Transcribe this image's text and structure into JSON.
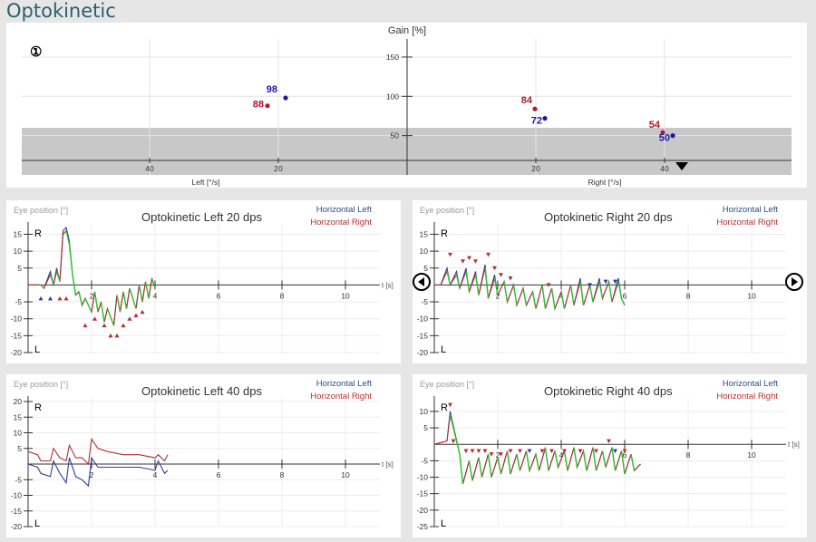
{
  "page_title": "Optokinetic",
  "gain_chart": {
    "ylabel": "Gain [%]",
    "y_ticks": [
      150,
      100,
      50
    ],
    "left_ticks": [
      40,
      20
    ],
    "right_ticks": [
      20,
      40
    ],
    "left_xlabel": "Left [°/s]",
    "right_xlabel": "Right [°/s]",
    "badge": "①",
    "shaded_below": 60,
    "points": [
      {
        "label": "98",
        "side": "left",
        "speed": 20,
        "gain": 98,
        "color": "#1a1aa0"
      },
      {
        "label": "88",
        "side": "left",
        "speed": 20,
        "gain": 88,
        "color": "#b01a2a"
      },
      {
        "label": "84",
        "side": "right",
        "speed": 20,
        "gain": 84,
        "color": "#b01a2a"
      },
      {
        "label": "72",
        "side": "right",
        "speed": 20,
        "gain": 72,
        "color": "#1a1aa0"
      },
      {
        "label": "54",
        "side": "right",
        "speed": 40,
        "gain": 54,
        "color": "#b01a2a"
      },
      {
        "label": "50",
        "side": "right",
        "speed": 40,
        "gain": 50,
        "color": "#1a1aa0"
      }
    ]
  },
  "legend": {
    "left": "Horizontal Left",
    "right": "Horizontal Right"
  },
  "eye_label": "Eye position [°]",
  "r_label": "R",
  "l_label": "L",
  "t_label": "t [s]",
  "colors": {
    "left": "#2e3f9a",
    "right": "#b03030",
    "green": "#22cc22",
    "shade": "#c8c8c8"
  },
  "chart_data": [
    {
      "type": "line",
      "title": "Optokinetic Left 20 dps",
      "xlabel": "t [s]",
      "ylabel": "Eye position [°]",
      "y_ticks": [
        15,
        10,
        5,
        -5,
        -10,
        -15,
        -20
      ],
      "x_ticks": [
        2,
        4,
        6,
        8,
        10
      ],
      "ylim": [
        -20,
        17
      ],
      "xlim": [
        0,
        11
      ],
      "series": [
        {
          "name": "Horizontal Left",
          "x": [
            0,
            0.4,
            0.5,
            0.7,
            0.8,
            0.9,
            1.0,
            1.1,
            1.2,
            1.3,
            1.4,
            1.5,
            1.6,
            1.7,
            1.8,
            2.0,
            2.1,
            2.2,
            2.3,
            2.4,
            2.5,
            2.7,
            2.8,
            2.9,
            3.0,
            3.1,
            3.2,
            3.4,
            3.5,
            3.6,
            3.7,
            3.8,
            3.9,
            4.0
          ],
          "y": [
            0,
            0,
            -1,
            4,
            0,
            5,
            1,
            16,
            17,
            13,
            3,
            -3,
            -2,
            -6,
            -4,
            -8,
            -2,
            -8,
            -5,
            -11,
            -7,
            -12,
            -3,
            -8,
            -2,
            -7,
            -1,
            -7,
            0,
            -5,
            1,
            -4,
            2,
            -1
          ]
        },
        {
          "name": "Horizontal Right",
          "x": [
            0,
            0.4,
            0.5,
            0.7,
            0.8,
            0.9,
            1.0,
            1.1,
            1.2,
            1.3,
            1.4,
            1.5,
            1.6,
            1.7,
            1.8,
            2.0,
            2.1,
            2.2,
            2.3,
            2.4,
            2.5,
            2.7,
            2.8,
            2.9,
            3.0,
            3.1,
            3.2,
            3.4,
            3.5,
            3.6,
            3.7,
            3.8,
            3.9,
            4.0
          ],
          "y": [
            0,
            0,
            -1,
            3,
            0,
            4,
            1,
            15,
            16,
            12,
            3,
            -3,
            -2,
            -6,
            -4,
            -8,
            -2,
            -8,
            -5,
            -11,
            -7,
            -12,
            -3,
            -8,
            -2,
            -7,
            -1,
            -7,
            0,
            -5,
            1,
            -4,
            2,
            -1
          ]
        }
      ],
      "markers": [
        {
          "x": 0.4,
          "y": -4,
          "dir": "up",
          "color": "#2e3f9a"
        },
        {
          "x": 0.7,
          "y": -4,
          "dir": "up",
          "color": "#2e3f9a"
        },
        {
          "x": 1.0,
          "y": -4,
          "dir": "up",
          "color": "#b03030"
        },
        {
          "x": 1.2,
          "y": -4,
          "dir": "up",
          "color": "#b03030"
        },
        {
          "x": 1.8,
          "y": -12,
          "dir": "up",
          "color": "#b03030"
        },
        {
          "x": 2.1,
          "y": -10,
          "dir": "up",
          "color": "#b03030"
        },
        {
          "x": 2.4,
          "y": -12,
          "dir": "up",
          "color": "#b03030"
        },
        {
          "x": 2.6,
          "y": -15,
          "dir": "up",
          "color": "#b03030"
        },
        {
          "x": 2.8,
          "y": -15,
          "dir": "up",
          "color": "#b03030"
        },
        {
          "x": 3.0,
          "y": -12,
          "dir": "up",
          "color": "#b03030"
        },
        {
          "x": 3.2,
          "y": -10,
          "dir": "up",
          "color": "#b03030"
        },
        {
          "x": 3.4,
          "y": -9,
          "dir": "up",
          "color": "#b03030"
        },
        {
          "x": 3.6,
          "y": -8,
          "dir": "up",
          "color": "#b03030"
        }
      ]
    },
    {
      "type": "line",
      "title": "Optokinetic Right 20 dps",
      "xlabel": "t [s]",
      "ylabel": "Eye position [°]",
      "y_ticks": [
        15,
        10,
        5,
        -5,
        -10,
        -15,
        -20
      ],
      "x_ticks": [
        2,
        4,
        6,
        8,
        10
      ],
      "ylim": [
        -20,
        17
      ],
      "xlim": [
        0,
        11
      ],
      "series": [
        {
          "name": "Horizontal Left",
          "x": [
            0,
            0.2,
            0.4,
            0.5,
            0.7,
            0.8,
            1.0,
            1.1,
            1.3,
            1.4,
            1.6,
            1.7,
            1.9,
            2.0,
            2.2,
            2.3,
            2.5,
            2.6,
            2.8,
            2.9,
            3.1,
            3.2,
            3.4,
            3.5,
            3.7,
            3.8,
            4.0,
            4.1,
            4.3,
            4.4,
            4.6,
            4.7,
            4.9,
            5.0,
            5.2,
            5.3,
            5.5,
            5.6,
            5.8,
            5.9,
            6.0
          ],
          "y": [
            0,
            0,
            5,
            0,
            4,
            -1,
            5,
            -2,
            4,
            -3,
            6,
            -4,
            3,
            -3,
            1,
            -5,
            0,
            -6,
            -1,
            -6,
            -2,
            -7,
            0,
            -7,
            -1,
            -7,
            -2,
            -7,
            0,
            -6,
            2,
            -6,
            0,
            -5,
            2,
            -4,
            1,
            -5,
            2,
            -4,
            -6
          ]
        },
        {
          "name": "Horizontal Right",
          "x": [
            0,
            0.2,
            0.4,
            0.5,
            0.7,
            0.8,
            1.0,
            1.1,
            1.3,
            1.4,
            1.6,
            1.7,
            1.9,
            2.0,
            2.2,
            2.3,
            2.5,
            2.6,
            2.8,
            2.9,
            3.1,
            3.2,
            3.4,
            3.5,
            3.7,
            3.8,
            4.0,
            4.1,
            4.3,
            4.4,
            4.6,
            4.7,
            4.9,
            5.0,
            5.2,
            5.3,
            5.5,
            5.6,
            5.8,
            5.9,
            6.0
          ],
          "y": [
            0,
            0,
            4,
            0,
            3,
            -1,
            4,
            -2,
            3,
            -3,
            5,
            -4,
            2,
            -3,
            1,
            -5,
            0,
            -6,
            -1,
            -6,
            -2,
            -7,
            0,
            -7,
            -1,
            -7,
            -2,
            -7,
            0,
            -6,
            1,
            -6,
            0,
            -5,
            1,
            -4,
            1,
            -5,
            1,
            -4,
            -6
          ]
        }
      ],
      "markers": [
        {
          "x": 0.5,
          "y": 9,
          "dir": "down",
          "color": "#b03030"
        },
        {
          "x": 0.9,
          "y": 7,
          "dir": "down",
          "color": "#b03030"
        },
        {
          "x": 1.1,
          "y": 8,
          "dir": "down",
          "color": "#b03030"
        },
        {
          "x": 1.3,
          "y": 7,
          "dir": "down",
          "color": "#b03030"
        },
        {
          "x": 1.7,
          "y": 9,
          "dir": "down",
          "color": "#b03030"
        },
        {
          "x": 1.9,
          "y": 5,
          "dir": "down",
          "color": "#b03030"
        },
        {
          "x": 2.1,
          "y": 3,
          "dir": "down",
          "color": "#b03030"
        },
        {
          "x": 2.4,
          "y": 2,
          "dir": "down",
          "color": "#b03030"
        },
        {
          "x": 3.6,
          "y": 0,
          "dir": "down",
          "color": "#b03030"
        },
        {
          "x": 4.9,
          "y": 0,
          "dir": "down",
          "color": "#2e3f9a"
        },
        {
          "x": 5.4,
          "y": 1,
          "dir": "down",
          "color": "#2e3f9a"
        },
        {
          "x": 5.7,
          "y": 1,
          "dir": "down",
          "color": "#2e3f9a"
        }
      ]
    },
    {
      "type": "line",
      "title": "Optokinetic Left 40 dps",
      "xlabel": "t [s]",
      "ylabel": "Eye position [°]",
      "y_ticks": [
        20,
        15,
        10,
        5,
        -5,
        -10,
        -15,
        -20
      ],
      "x_ticks": [
        2,
        4,
        6,
        8,
        10
      ],
      "ylim": [
        -20,
        20
      ],
      "xlim": [
        0,
        11
      ],
      "series": [
        {
          "name": "Horizontal Left",
          "x": [
            0,
            0.3,
            0.4,
            0.7,
            0.8,
            1.0,
            1.2,
            1.3,
            1.5,
            1.7,
            1.9,
            2.0,
            2.2,
            2.5,
            3.0,
            3.5,
            4.0,
            4.1,
            4.3,
            4.4
          ],
          "y": [
            0,
            -1,
            -3,
            -4,
            1,
            -3,
            -6,
            2,
            -4,
            -5,
            -7,
            2,
            -1,
            -1,
            -1,
            -1,
            -2,
            1,
            -3,
            -2
          ]
        },
        {
          "name": "Horizontal Right",
          "x": [
            0,
            0.3,
            0.4,
            0.7,
            0.8,
            1.0,
            1.2,
            1.3,
            1.5,
            1.7,
            1.9,
            2.0,
            2.2,
            2.5,
            3.0,
            3.5,
            4.0,
            4.1,
            4.3,
            4.4
          ],
          "y": [
            4,
            3,
            1,
            1,
            5,
            2,
            1,
            6,
            2,
            2,
            0,
            8,
            5,
            4,
            3,
            3,
            2,
            3,
            1,
            3
          ]
        }
      ],
      "markers": []
    },
    {
      "type": "line",
      "title": "Optokinetic Right 40 dps",
      "xlabel": "t [s]",
      "ylabel": "Eye position [°]",
      "y_ticks": [
        10,
        5,
        -5,
        -10,
        -15,
        -20,
        -25
      ],
      "x_ticks": [
        2,
        4,
        6,
        8,
        10
      ],
      "ylim": [
        -25,
        13
      ],
      "xlim": [
        0,
        11
      ],
      "series": [
        {
          "name": "Horizontal Left",
          "x": [
            0,
            0.4,
            0.5,
            0.8,
            0.9,
            1.1,
            1.2,
            1.4,
            1.5,
            1.7,
            1.8,
            2.0,
            2.1,
            2.3,
            2.4,
            2.6,
            2.7,
            2.9,
            3.0,
            3.2,
            3.3,
            3.5,
            3.6,
            3.8,
            3.9,
            4.1,
            4.2,
            4.4,
            4.5,
            4.7,
            4.8,
            5.0,
            5.1,
            5.3,
            5.4,
            5.6,
            5.7,
            5.9,
            6.0,
            6.2,
            6.3,
            6.5
          ],
          "y": [
            0,
            1,
            10,
            -3,
            -12,
            -5,
            -11,
            -4,
            -10,
            -3,
            -10,
            -4,
            -9,
            -2,
            -9,
            -3,
            -8,
            -2,
            -8,
            -3,
            -8,
            -1,
            -8,
            -2,
            -7,
            -2,
            -8,
            -1,
            -7,
            -2,
            -8,
            -1,
            -8,
            -2,
            -7,
            -1,
            -8,
            -2,
            -9,
            -3,
            -8,
            -6
          ]
        },
        {
          "name": "Horizontal Right",
          "x": [
            0,
            0.4,
            0.5,
            0.8,
            0.9,
            1.1,
            1.2,
            1.4,
            1.5,
            1.7,
            1.8,
            2.0,
            2.1,
            2.3,
            2.4,
            2.6,
            2.7,
            2.9,
            3.0,
            3.2,
            3.3,
            3.5,
            3.6,
            3.8,
            3.9,
            4.1,
            4.2,
            4.4,
            4.5,
            4.7,
            4.8,
            5.0,
            5.1,
            5.3,
            5.4,
            5.6,
            5.7,
            5.9,
            6.0,
            6.2,
            6.3,
            6.5
          ],
          "y": [
            0,
            1,
            9,
            -3,
            -12,
            -5,
            -11,
            -4,
            -10,
            -3,
            -10,
            -4,
            -9,
            -2,
            -9,
            -3,
            -8,
            -2,
            -8,
            -3,
            -8,
            -1,
            -8,
            -2,
            -7,
            -2,
            -8,
            -1,
            -7,
            -2,
            -8,
            -1,
            -8,
            -2,
            -7,
            -1,
            -8,
            -2,
            -9,
            -3,
            -8,
            -6
          ]
        }
      ],
      "markers": [
        {
          "x": 0.5,
          "y": 12,
          "dir": "down",
          "color": "#b03030"
        },
        {
          "x": 0.6,
          "y": 1,
          "dir": "down",
          "color": "#b03030"
        },
        {
          "x": 1.0,
          "y": -2,
          "dir": "down",
          "color": "#b03030"
        },
        {
          "x": 1.2,
          "y": -2,
          "dir": "down",
          "color": "#b03030"
        },
        {
          "x": 1.4,
          "y": -2,
          "dir": "down",
          "color": "#b03030"
        },
        {
          "x": 1.6,
          "y": -2,
          "dir": "down",
          "color": "#b03030"
        },
        {
          "x": 1.8,
          "y": -3,
          "dir": "down",
          "color": "#b03030"
        },
        {
          "x": 2.1,
          "y": -3,
          "dir": "down",
          "color": "#b03030"
        },
        {
          "x": 2.4,
          "y": -2,
          "dir": "down",
          "color": "#b03030"
        },
        {
          "x": 2.7,
          "y": -2,
          "dir": "down",
          "color": "#b03030"
        },
        {
          "x": 3.0,
          "y": -2,
          "dir": "down",
          "color": "#2e3f9a"
        },
        {
          "x": 3.4,
          "y": -2,
          "dir": "down",
          "color": "#b03030"
        },
        {
          "x": 3.7,
          "y": -2,
          "dir": "down",
          "color": "#b03030"
        },
        {
          "x": 4.1,
          "y": -2,
          "dir": "down",
          "color": "#b03030"
        },
        {
          "x": 4.6,
          "y": -2,
          "dir": "down",
          "color": "#b03030"
        },
        {
          "x": 5.1,
          "y": -2,
          "dir": "down",
          "color": "#b03030"
        },
        {
          "x": 5.5,
          "y": 1,
          "dir": "down",
          "color": "#b03030"
        },
        {
          "x": 5.7,
          "y": -2,
          "dir": "down",
          "color": "#2e3f9a"
        },
        {
          "x": 6.0,
          "y": -2,
          "dir": "down",
          "color": "#b03030"
        }
      ]
    }
  ]
}
